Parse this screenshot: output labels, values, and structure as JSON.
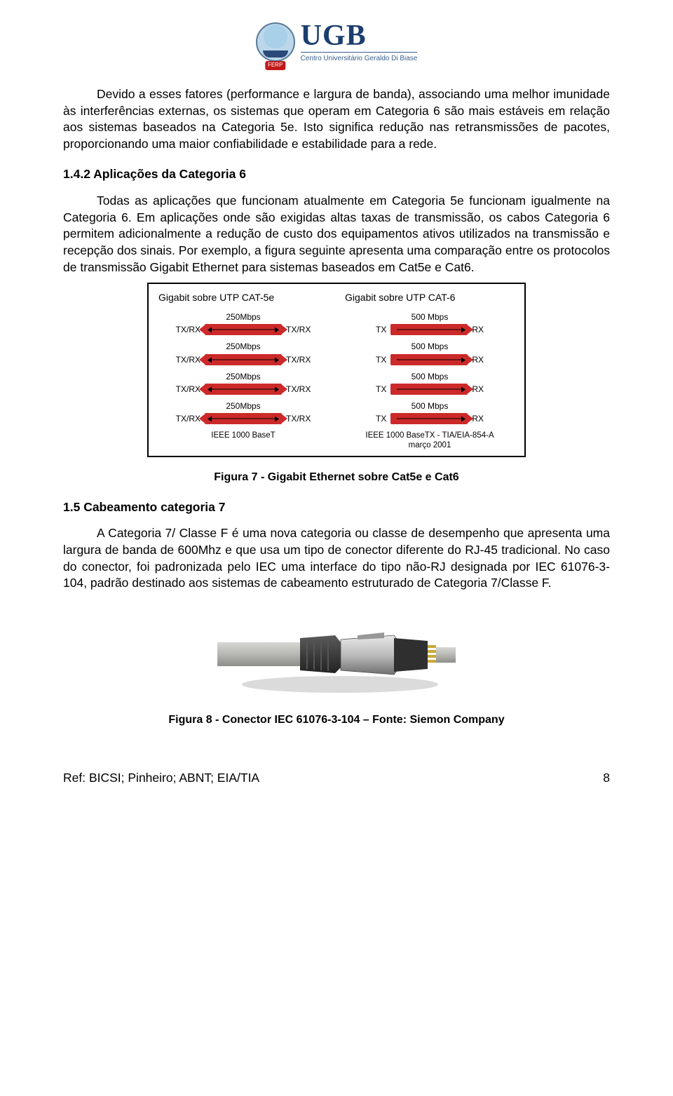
{
  "logo": {
    "acronym": "UGB",
    "subtitle": "Centro Universitário Geraldo Di Biase",
    "badge": "FERP"
  },
  "paragraph1": "Devido a esses fatores (performance e largura de banda), associando uma melhor imunidade às interferências externas, os sistemas que operam em Categoria 6 são mais estáveis em relação aos sistemas baseados na Categoria 5e. Isto significa redução nas retransmissões de pacotes, proporcionando uma maior confiabilidade e estabilidade para a rede.",
  "subheading142": "1.4.2 Aplicações da Categoria 6",
  "paragraph2": "Todas as aplicações que funcionam atualmente em Categoria 5e funcionam igualmente na Categoria 6. Em aplicações onde são exigidas altas taxas de transmissão, os cabos Categoria 6 permitem adicionalmente a redução de custo dos equipamentos ativos utilizados na transmissão e recepção dos sinais. Por exemplo, a figura seguinte apresenta uma comparação entre os protocolos de transmissão Gigabit Ethernet para sistemas baseados em Cat5e e Cat6.",
  "fig7": {
    "type": "diagram",
    "border_color": "#000000",
    "background_color": "#ffffff",
    "arrow_fill": "#cc2a2a",
    "arrow_line": "#000000",
    "text_color": "#000000",
    "font_size_title": 14,
    "font_size_rate": 12,
    "font_size_label": 12,
    "font_size_footer": 11.5,
    "left": {
      "title": "Gigabit sobre UTP CAT-5e",
      "lanes": [
        {
          "rate": "250Mbps",
          "left": "TX/RX",
          "right": "TX/RX",
          "dir": "bi"
        },
        {
          "rate": "250Mbps",
          "left": "TX/RX",
          "right": "TX/RX",
          "dir": "bi"
        },
        {
          "rate": "250Mbps",
          "left": "TX/RX",
          "right": "TX/RX",
          "dir": "bi"
        },
        {
          "rate": "250Mbps",
          "left": "TX/RX",
          "right": "TX/RX",
          "dir": "bi"
        }
      ],
      "footer": "IEEE 1000 BaseT"
    },
    "right": {
      "title": "Gigabit sobre UTP CAT-6",
      "lanes": [
        {
          "rate": "500 Mbps",
          "left": "TX",
          "right": "RX",
          "dir": "uni"
        },
        {
          "rate": "500 Mbps",
          "left": "TX",
          "right": "RX",
          "dir": "uni"
        },
        {
          "rate": "500 Mbps",
          "left": "TX",
          "right": "RX",
          "dir": "uni"
        },
        {
          "rate": "500 Mbps",
          "left": "TX",
          "right": "RX",
          "dir": "uni"
        }
      ],
      "footer": "IEEE 1000 BaseTX - TIA/EIA-854-A março 2001"
    }
  },
  "fig7_caption": "Figura 7 - Gigabit Ethernet sobre Cat5e e Cat6",
  "section15": "1.5 Cabeamento categoria 7",
  "paragraph3": "A Categoria 7/ Classe F é uma nova categoria ou classe de desempenho que apresenta uma largura de banda de 600Mhz e que usa um tipo de conector diferente do RJ-45 tradicional. No caso do conector, foi padronizada pelo IEC uma interface do tipo não-RJ designada por IEC 61076-3-104, padrão destinado aos sistemas de cabeamento estruturado de Categoria 7/Classe F.",
  "fig8": {
    "type": "illustration",
    "cable_color": "#b7b8b4",
    "cable_shade": "#8d8e89",
    "boot_color": "#3a3a3a",
    "metal_light": "#d8d8d8",
    "metal_dark": "#6f6f6f",
    "pin_gold": "#caa835",
    "shadow": "#bdbdbd"
  },
  "fig8_caption": "Figura 8 - Conector IEC 61076-3-104 – Fonte: Siemon Company",
  "footer": {
    "ref": "Ref: BICSI; Pinheiro; ABNT; EIA/TIA",
    "page": "8"
  }
}
